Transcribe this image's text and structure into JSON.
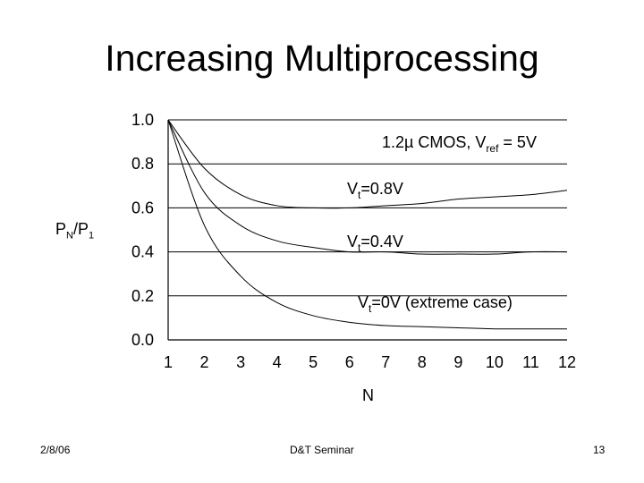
{
  "slide": {
    "title": "Increasing Multiprocessing",
    "ylabel_main": "P",
    "ylabel_sub1": "N",
    "ylabel_mid": "/P",
    "ylabel_sub2": "1",
    "xlabel": "N"
  },
  "footer": {
    "date": "2/8/06",
    "center": "D&T Seminar",
    "page": "13"
  },
  "chart_data": {
    "type": "line",
    "title": "",
    "xlabel": "N",
    "ylabel": "PN/P1",
    "xlim": [
      1,
      12
    ],
    "ylim": [
      0,
      1
    ],
    "x_ticks": [
      "1",
      "2",
      "3",
      "4",
      "5",
      "6",
      "7",
      "8",
      "9",
      "10",
      "11",
      "12"
    ],
    "y_ticks": [
      "0.0",
      "0.2",
      "0.4",
      "0.6",
      "0.8",
      "1.0"
    ],
    "grid": true,
    "annotation_parts": {
      "header": {
        "main": "1.2µ CMOS, V",
        "sub": "ref",
        "tail": " = 5V"
      },
      "vt08": {
        "main": "V",
        "sub": "t",
        "tail": "=0.8V"
      },
      "vt04": {
        "main": "V",
        "sub": "t",
        "tail": "=0.4V"
      },
      "vt0": {
        "main": "V",
        "sub": "t",
        "tail": "=0V (extreme case)"
      }
    },
    "x": [
      1,
      2,
      3,
      4,
      5,
      6,
      7,
      8,
      9,
      10,
      11,
      12
    ],
    "series": [
      {
        "values": [
          1.0,
          0.78,
          0.66,
          0.61,
          0.6,
          0.6,
          0.61,
          0.62,
          0.64,
          0.65,
          0.66,
          0.68
        ]
      },
      {
        "values": [
          1.0,
          0.67,
          0.52,
          0.45,
          0.42,
          0.4,
          0.4,
          0.39,
          0.39,
          0.39,
          0.4,
          0.4
        ]
      },
      {
        "values": [
          1.0,
          0.52,
          0.29,
          0.17,
          0.11,
          0.08,
          0.065,
          0.06,
          0.055,
          0.05,
          0.05,
          0.05
        ]
      }
    ]
  }
}
